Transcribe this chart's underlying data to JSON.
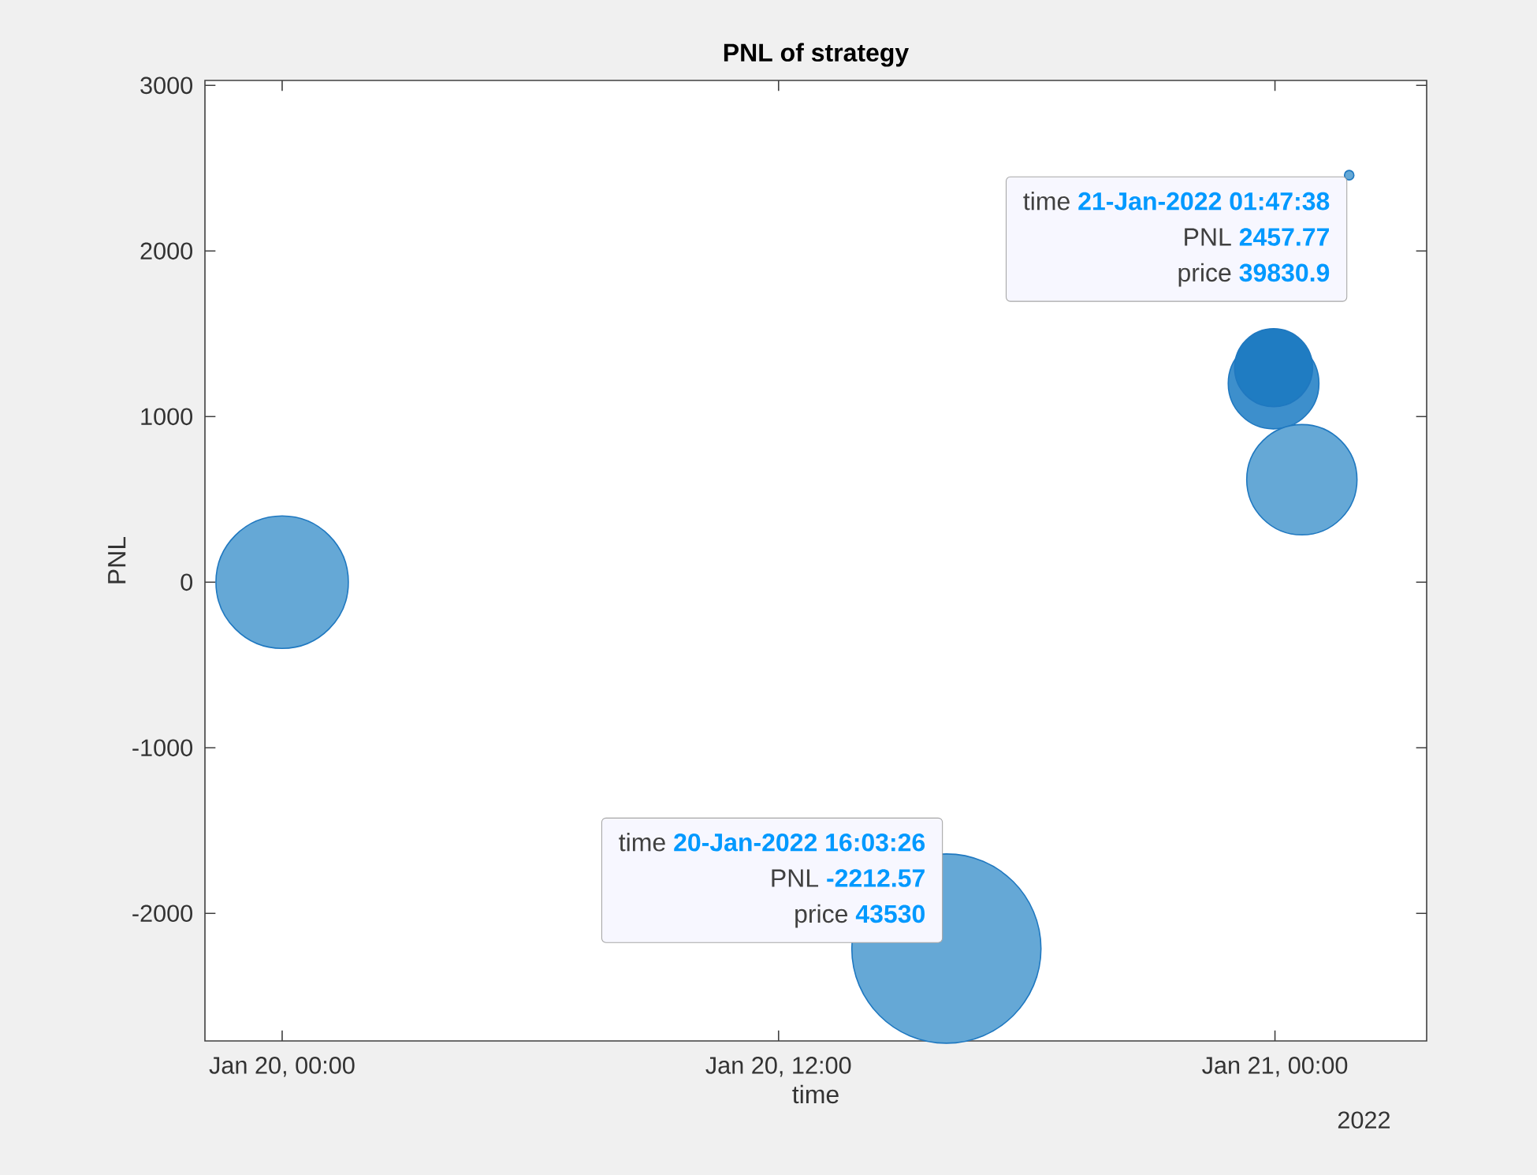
{
  "chart_data": {
    "type": "bubble",
    "title": "PNL of strategy",
    "xlabel": "time",
    "ylabel": "PNL",
    "x": [
      "2022-01-20T00:00",
      "2022-01-20T16:03:26",
      "2022-01-20T23:58",
      "2022-01-20T23:58",
      "2022-01-21T00:39",
      "2022-01-21T01:47:38"
    ],
    "values": [
      0,
      -2212.57,
      1200,
      1295,
      619,
      2457.77
    ],
    "sizes": [
      0.49,
      1,
      0.23,
      0.17,
      0.34,
      0.0025
    ],
    "colors": [
      "#65a8d6",
      "#65a8d6",
      "#3d8fcc",
      "#1f7cc2",
      "#65a8d6",
      "#65a8d6"
    ],
    "xlim": [
      "2022-01-19T22:08",
      "2022-01-21T03:40"
    ],
    "ylim": [
      -2770,
      3030
    ],
    "xticks": [
      {
        "value": "2022-01-20T00:00",
        "label": "Jan 20, 00:00"
      },
      {
        "value": "2022-01-20T12:00",
        "label": "Jan 20, 12:00"
      },
      {
        "value": "2022-01-21T00:00",
        "label": "Jan 21, 00:00"
      }
    ],
    "yticks": [
      -2000,
      -1000,
      0,
      1000,
      2000,
      3000
    ],
    "annotations": [
      "time **21-Jan-2022 01:47:38**",
      "PNL **2457.77**",
      "price **39830.9**",
      "time **20-Jan-2022 16:03:26**",
      "PNL **-2212.57**",
      "price **43530**",
      "2022"
    ]
  }
}
